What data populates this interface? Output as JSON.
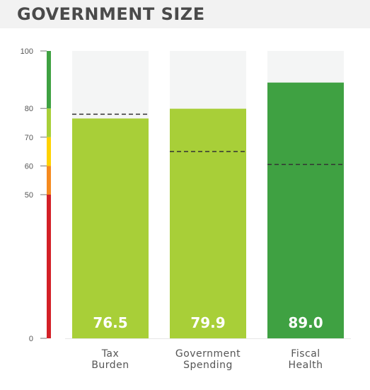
{
  "header": {
    "title": "GOVERNMENT SIZE"
  },
  "chart_data": {
    "type": "bar",
    "title": "GOVERNMENT SIZE",
    "categories": [
      {
        "line1": "Tax",
        "line2": "Burden"
      },
      {
        "line1": "Government",
        "line2": "Spending"
      },
      {
        "line1": "Fiscal",
        "line2": "Health"
      }
    ],
    "values": [
      76.5,
      79.9,
      89.0
    ],
    "value_labels": [
      "76.5",
      "79.9",
      "89.0"
    ],
    "reference_values": [
      78,
      65,
      60.5
    ],
    "ylim": [
      0,
      100
    ],
    "y_ticks": [
      0,
      50,
      60,
      70,
      80,
      100
    ],
    "y_tick_labels": [
      "0",
      "50",
      "60",
      "70",
      "80",
      "100"
    ],
    "grid": false,
    "score_bands": [
      {
        "from": 0,
        "to": 50,
        "color": "#d32027"
      },
      {
        "from": 50,
        "to": 60,
        "color": "#f58a1f"
      },
      {
        "from": 60,
        "to": 70,
        "color": "#ffd200"
      },
      {
        "from": 70,
        "to": 80,
        "color": "#a8cf38"
      },
      {
        "from": 80,
        "to": 100,
        "color": "#3fa142"
      }
    ],
    "colors": {
      "track": "#f4f5f5",
      "mid_green": "#a8cf38",
      "dark_green": "#3fa142",
      "reference_line": "#333333"
    }
  }
}
